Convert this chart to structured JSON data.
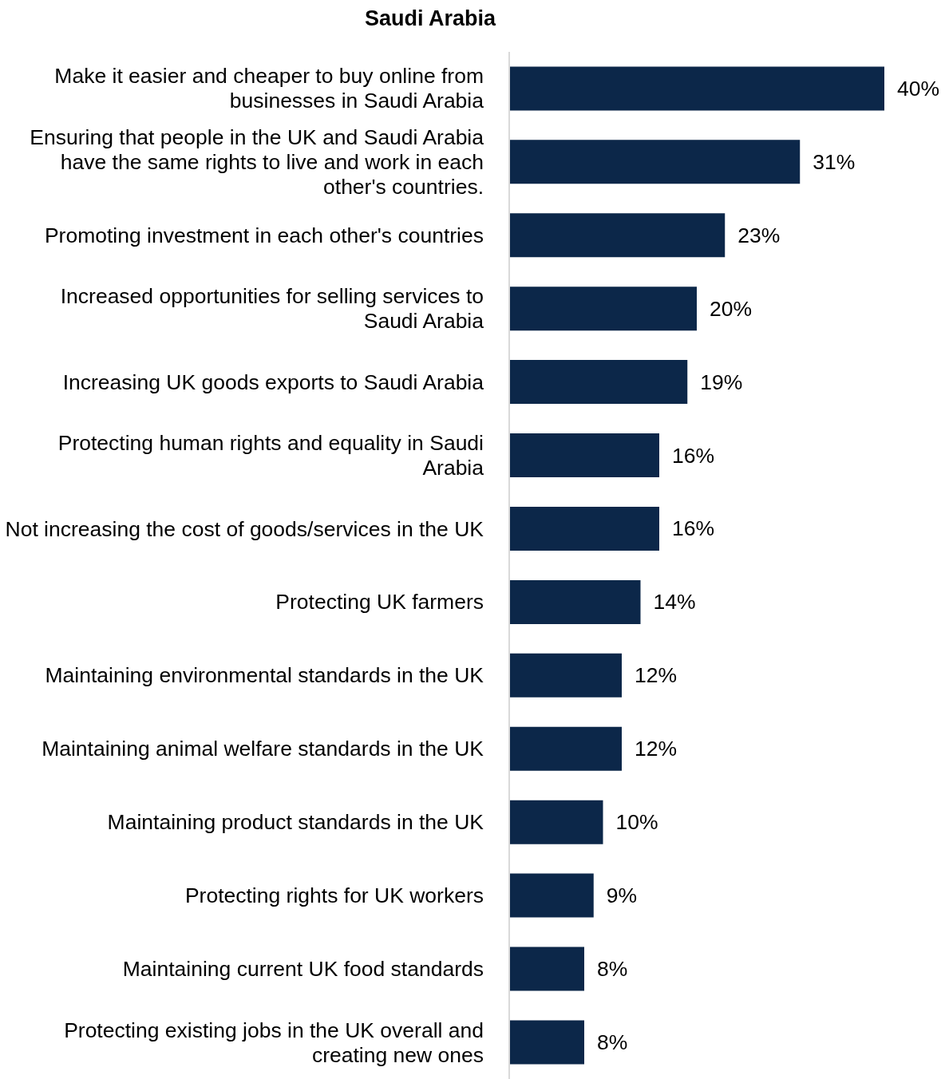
{
  "chart_data": {
    "type": "bar",
    "orientation": "horizontal",
    "title": "Saudi Arabia",
    "categories": [
      "Make it easier and cheaper to buy online from businesses in Saudi Arabia",
      "Ensuring that people in the UK and Saudi Arabia have the same rights to live and work in each other's countries.",
      "Promoting investment in each other's countries",
      "Increased opportunities for selling services to Saudi Arabia",
      "Increasing UK goods exports to Saudi Arabia",
      "Protecting human rights and equality in Saudi Arabia",
      "Not increasing the cost of goods/services in the UK",
      "Protecting UK farmers",
      "Maintaining environmental standards in the UK",
      "Maintaining animal welfare standards in the UK",
      "Maintaining product standards in the UK",
      "Protecting rights for UK workers",
      "Maintaining current UK food standards",
      "Protecting existing jobs in the UK overall and creating new ones"
    ],
    "values": [
      40,
      31,
      23,
      20,
      19,
      16,
      16,
      14,
      12,
      12,
      10,
      9,
      8,
      8
    ],
    "value_labels": [
      "40%",
      "31%",
      "23%",
      "20%",
      "19%",
      "16%",
      "16%",
      "14%",
      "12%",
      "12%",
      "10%",
      "9%",
      "8%",
      "8%"
    ],
    "color": "#0c2749"
  }
}
